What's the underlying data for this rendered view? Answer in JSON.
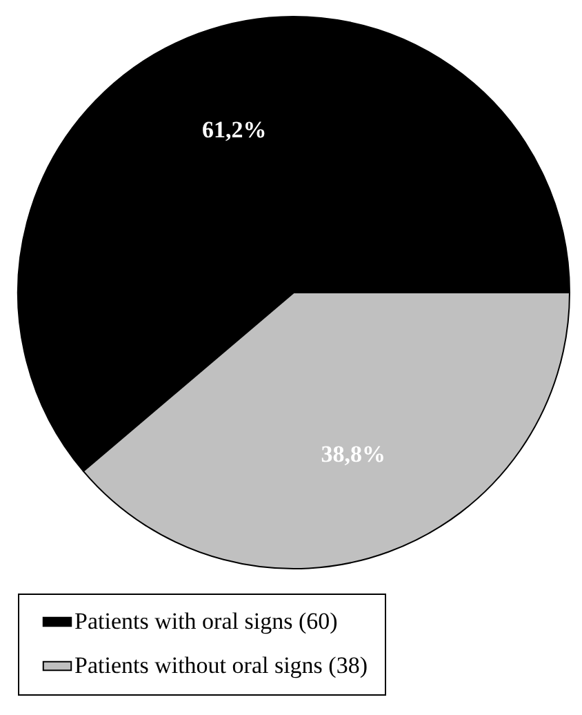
{
  "chart_data": {
    "type": "pie",
    "categories": [
      "Patients with oral signs (60)",
      "Patients without oral signs (38)"
    ],
    "values": [
      61.2,
      38.8
    ],
    "colors": [
      "#000000",
      "#c0c0c0"
    ],
    "value_labels": [
      "61,2%",
      "38,8%"
    ],
    "legend": "bottom"
  }
}
